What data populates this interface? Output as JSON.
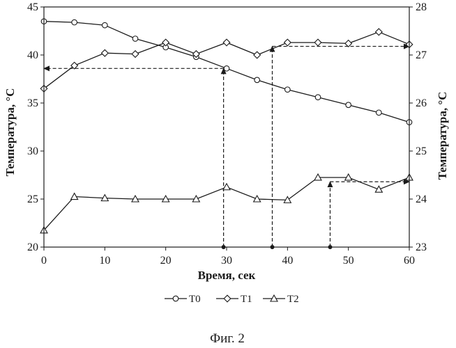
{
  "chart_data": {
    "type": "line",
    "xlabel": "Время, сек",
    "ylabel_left": "Температура, °С",
    "ylabel_right": "Температура, °С",
    "xlim": [
      0,
      60
    ],
    "ylim_left": [
      20,
      45
    ],
    "ylim_right": [
      23,
      28
    ],
    "x_ticks": [
      "0",
      "10",
      "20",
      "30",
      "40",
      "50",
      "60"
    ],
    "y_ticks_left": [
      "20",
      "25",
      "30",
      "35",
      "40",
      "45"
    ],
    "y_ticks_right": [
      "23",
      "24",
      "25",
      "26",
      "27",
      "28"
    ],
    "grid": false,
    "legend_position": "bottom",
    "series": [
      {
        "name": "T0",
        "axis": "left",
        "marker": "circle",
        "x": [
          0,
          5,
          10,
          15,
          20,
          25,
          30,
          35,
          40,
          45,
          50,
          55,
          60
        ],
        "values": [
          43.5,
          43.4,
          43.1,
          41.7,
          40.8,
          39.8,
          38.6,
          37.4,
          36.4,
          35.6,
          34.8,
          34.0,
          33.0
        ]
      },
      {
        "name": "T1",
        "axis": "left",
        "marker": "diamond",
        "x": [
          0,
          5,
          10,
          15,
          20,
          25,
          30,
          35,
          40,
          45,
          50,
          55,
          60
        ],
        "values": [
          36.5,
          38.9,
          40.2,
          40.1,
          41.3,
          40.1,
          41.3,
          40.0,
          41.3,
          41.3,
          41.2,
          42.4,
          41.1
        ]
      },
      {
        "name": "T2",
        "axis": "right",
        "marker": "triangle",
        "x": [
          0,
          5,
          10,
          15,
          20,
          25,
          30,
          35,
          40,
          45,
          50,
          55,
          60
        ],
        "values": [
          23.35,
          24.05,
          24.02,
          24.0,
          24.0,
          24.0,
          24.25,
          24.0,
          23.98,
          24.45,
          24.45,
          24.2,
          24.45
        ]
      }
    ],
    "annotations": [
      {
        "type": "dashed-arrow",
        "from_x": 29.5,
        "from_y_left": 20,
        "to_x": 29.5,
        "to_y_left": 38.6
      },
      {
        "type": "dashed-arrow",
        "from_x": 29.5,
        "from_y_left": 38.6,
        "to_x": 0,
        "to_y_left": 38.6
      },
      {
        "type": "dashed-arrow",
        "from_x": 37.5,
        "from_y_left": 20,
        "to_x": 37.5,
        "to_y_left": 40.9
      },
      {
        "type": "dashed-arrow",
        "from_x": 37.5,
        "from_y_left": 40.9,
        "to_x": 60,
        "to_y_left": 40.9
      },
      {
        "type": "dashed-arrow",
        "from_x": 47,
        "from_y_left": 20,
        "to_x": 47,
        "to_y_left": 26.8
      },
      {
        "type": "dashed-arrow",
        "from_x": 47,
        "from_y_left": 26.8,
        "to_x": 60,
        "to_y_left": 26.8
      }
    ]
  },
  "caption": "Фиг. 2"
}
